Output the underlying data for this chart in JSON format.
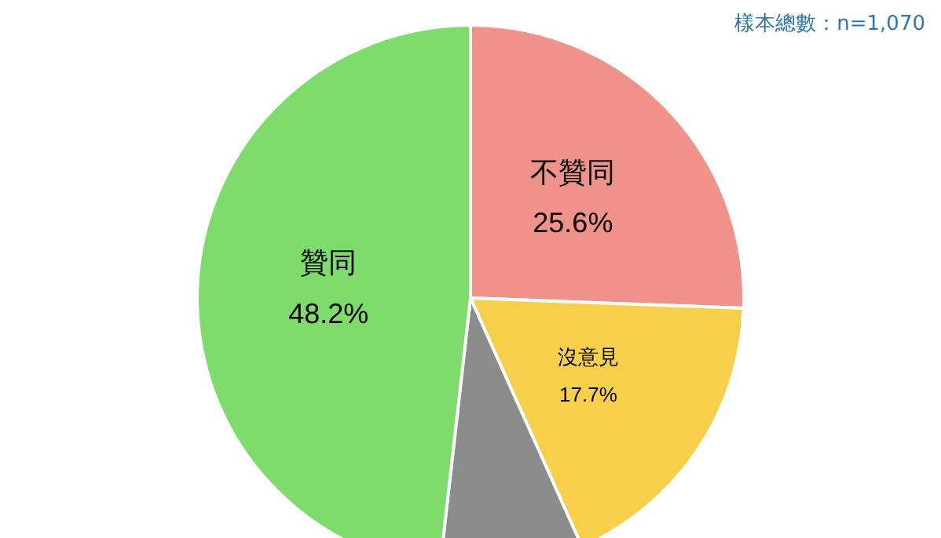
{
  "chart_data": {
    "type": "pie",
    "categories": [
      "不贊同",
      "沒意見",
      null,
      "贊同"
    ],
    "values": [
      25.6,
      17.7,
      8.5,
      48.2
    ],
    "colors": [
      "#f0928a",
      "#f7cf4a",
      "#8c8c8c",
      "#7ddc6c"
    ],
    "value_labels": [
      "25.6%",
      "17.7%",
      null,
      "48.2%"
    ],
    "annotations": [
      "樣本總數：n=1,070"
    ],
    "legend": false
  }
}
